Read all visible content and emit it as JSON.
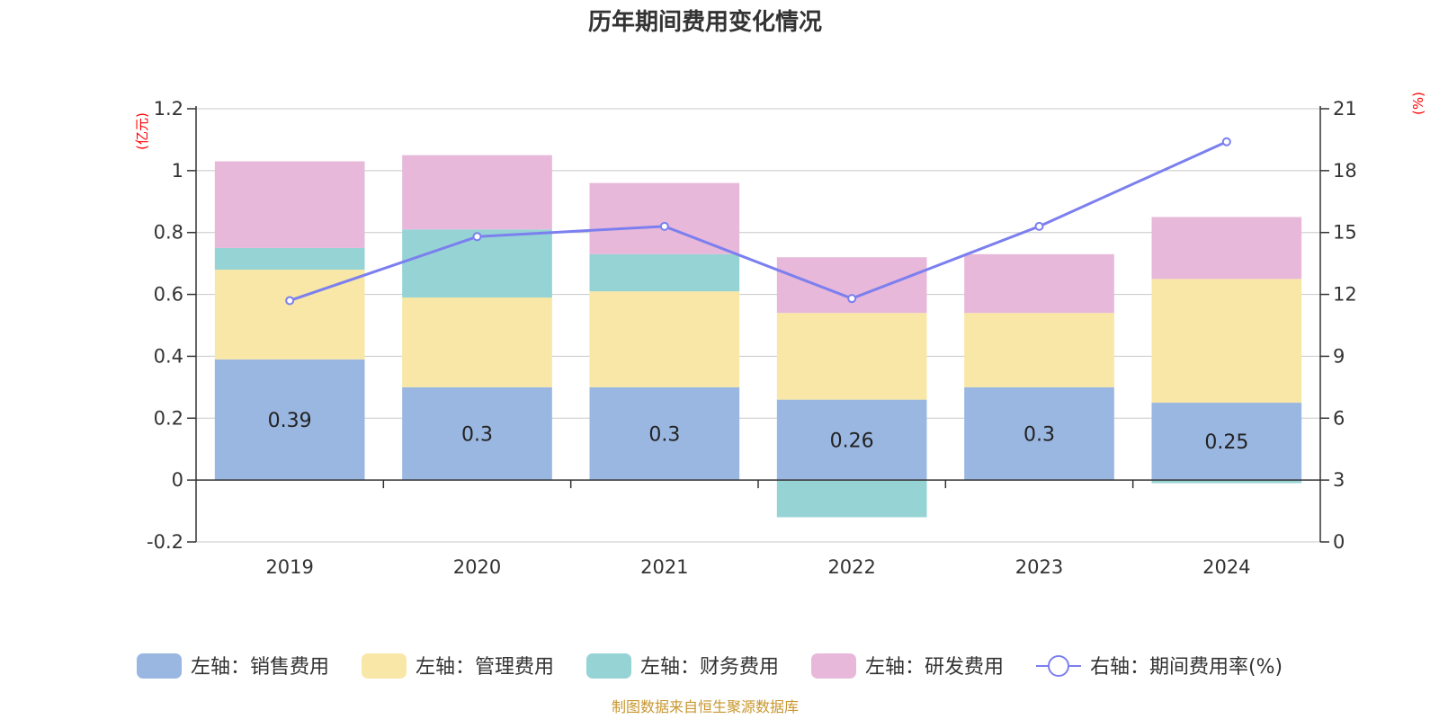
{
  "chart_data": {
    "type": "bar",
    "stacked": true,
    "title": "历年期间费用变化情况",
    "left_unit": "(亿元)",
    "right_unit": "(%)",
    "categories": [
      "2019",
      "2020",
      "2021",
      "2022",
      "2023",
      "2024"
    ],
    "left_axis": {
      "min": -0.2,
      "max": 1.2,
      "ticks": [
        -0.2,
        0,
        0.2,
        0.4,
        0.6,
        0.8,
        1,
        1.2
      ],
      "tick_labels": [
        "-0.2",
        "0",
        "0.2",
        "0.4",
        "0.6",
        "0.8",
        "1",
        "1.2"
      ]
    },
    "right_axis": {
      "min": 0,
      "max": 21,
      "ticks": [
        0,
        3,
        6,
        9,
        12,
        15,
        18,
        21
      ],
      "tick_labels": [
        "0",
        "3",
        "6",
        "9",
        "12",
        "15",
        "18",
        "21"
      ]
    },
    "series": [
      {
        "name": "左轴：销售费用",
        "color": "#9ab7e1",
        "values": [
          0.39,
          0.3,
          0.3,
          0.26,
          0.3,
          0.25
        ],
        "value_labels": [
          "0.39",
          "0.3",
          "0.3",
          "0.26",
          "0.3",
          "0.25"
        ]
      },
      {
        "name": "左轴：管理费用",
        "color": "#f8e7a6",
        "values": [
          0.29,
          0.29,
          0.31,
          0.28,
          0.24,
          0.4
        ]
      },
      {
        "name": "左轴：财务费用",
        "color": "#96d3d4",
        "values": [
          0.07,
          0.22,
          0.12,
          -0.12,
          0.0,
          -0.01
        ]
      },
      {
        "name": "左轴：研发费用",
        "color": "#e7b8d9",
        "values": [
          0.28,
          0.24,
          0.23,
          0.18,
          0.19,
          0.2
        ]
      }
    ],
    "line_series": {
      "name": "右轴：期间费用率(%)",
      "color": "#7b7fef",
      "axis": "right",
      "values": [
        11.7,
        14.8,
        15.3,
        11.8,
        15.3,
        19.4
      ]
    },
    "source": "制图数据来自恒生聚源数据库"
  }
}
